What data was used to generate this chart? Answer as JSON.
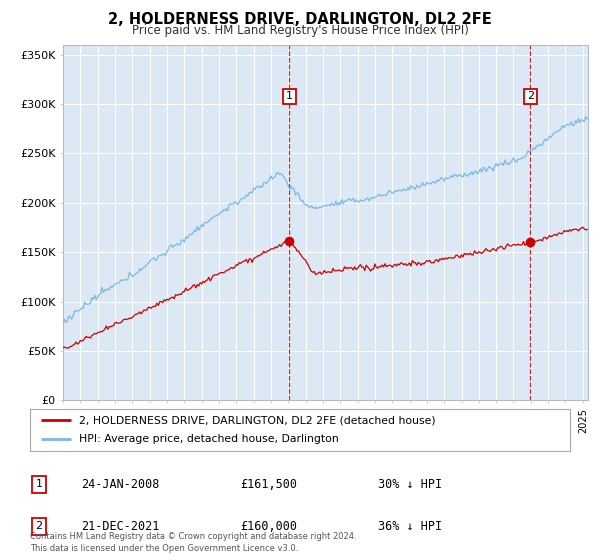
{
  "title": "2, HOLDERNESS DRIVE, DARLINGTON, DL2 2FE",
  "subtitle": "Price paid vs. HM Land Registry's House Price Index (HPI)",
  "bg_color": "#dce9f5",
  "ylabel": "",
  "ylim": [
    0,
    360000
  ],
  "yticks": [
    0,
    50000,
    100000,
    150000,
    200000,
    250000,
    300000,
    350000
  ],
  "ytick_labels": [
    "£0",
    "£50K",
    "£100K",
    "£150K",
    "£200K",
    "£250K",
    "£300K",
    "£350K"
  ],
  "xlim": [
    1995,
    2025.3
  ],
  "sale1_date": 2008.07,
  "sale1_price": 161500,
  "sale1_label": "1",
  "sale2_date": 2021.97,
  "sale2_price": 160000,
  "sale2_label": "2",
  "legend1_text": "2, HOLDERNESS DRIVE, DARLINGTON, DL2 2FE (detached house)",
  "legend2_text": "HPI: Average price, detached house, Darlington",
  "info1_num": "1",
  "info1_date": "24-JAN-2008",
  "info1_price": "£161,500",
  "info1_hpi": "30% ↓ HPI",
  "info2_num": "2",
  "info2_date": "21-DEC-2021",
  "info2_price": "£160,000",
  "info2_hpi": "36% ↓ HPI",
  "footer": "Contains HM Land Registry data © Crown copyright and database right 2024.\nThis data is licensed under the Open Government Licence v3.0.",
  "hpi_color": "#7ab8e8",
  "price_color": "#cc0000",
  "dashed_color": "#cc0000",
  "grid_color": "#d0d8e8",
  "label_box_color": "#cc0000"
}
